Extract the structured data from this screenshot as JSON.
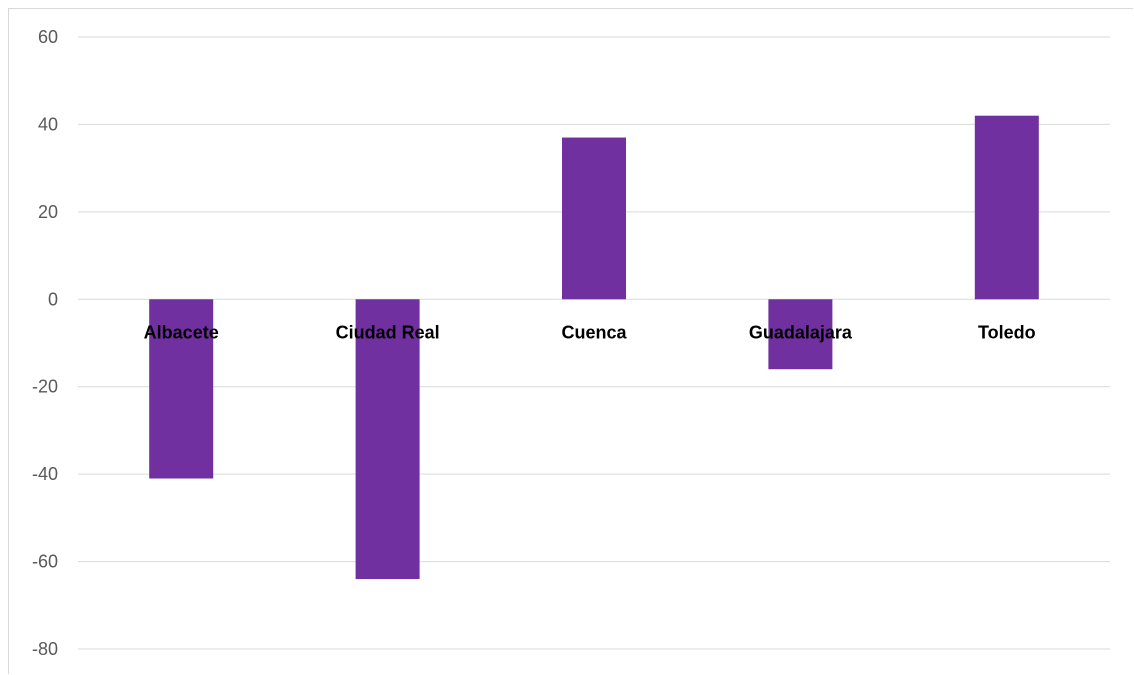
{
  "chart_data": {
    "type": "bar",
    "categories": [
      "Albacete",
      "Ciudad Real",
      "Cuenca",
      "Guadalajara",
      "Toledo"
    ],
    "values": [
      -41,
      -64,
      37,
      -16,
      42
    ],
    "title": "",
    "xlabel": "",
    "ylabel": "",
    "ylim": [
      -80,
      60
    ],
    "yticks": [
      60,
      40,
      20,
      0,
      -20,
      -40,
      -60,
      -80
    ],
    "grid": true,
    "legend": "none",
    "bar_color": "#7030a0",
    "gridline_color": "#d9d9d9"
  }
}
